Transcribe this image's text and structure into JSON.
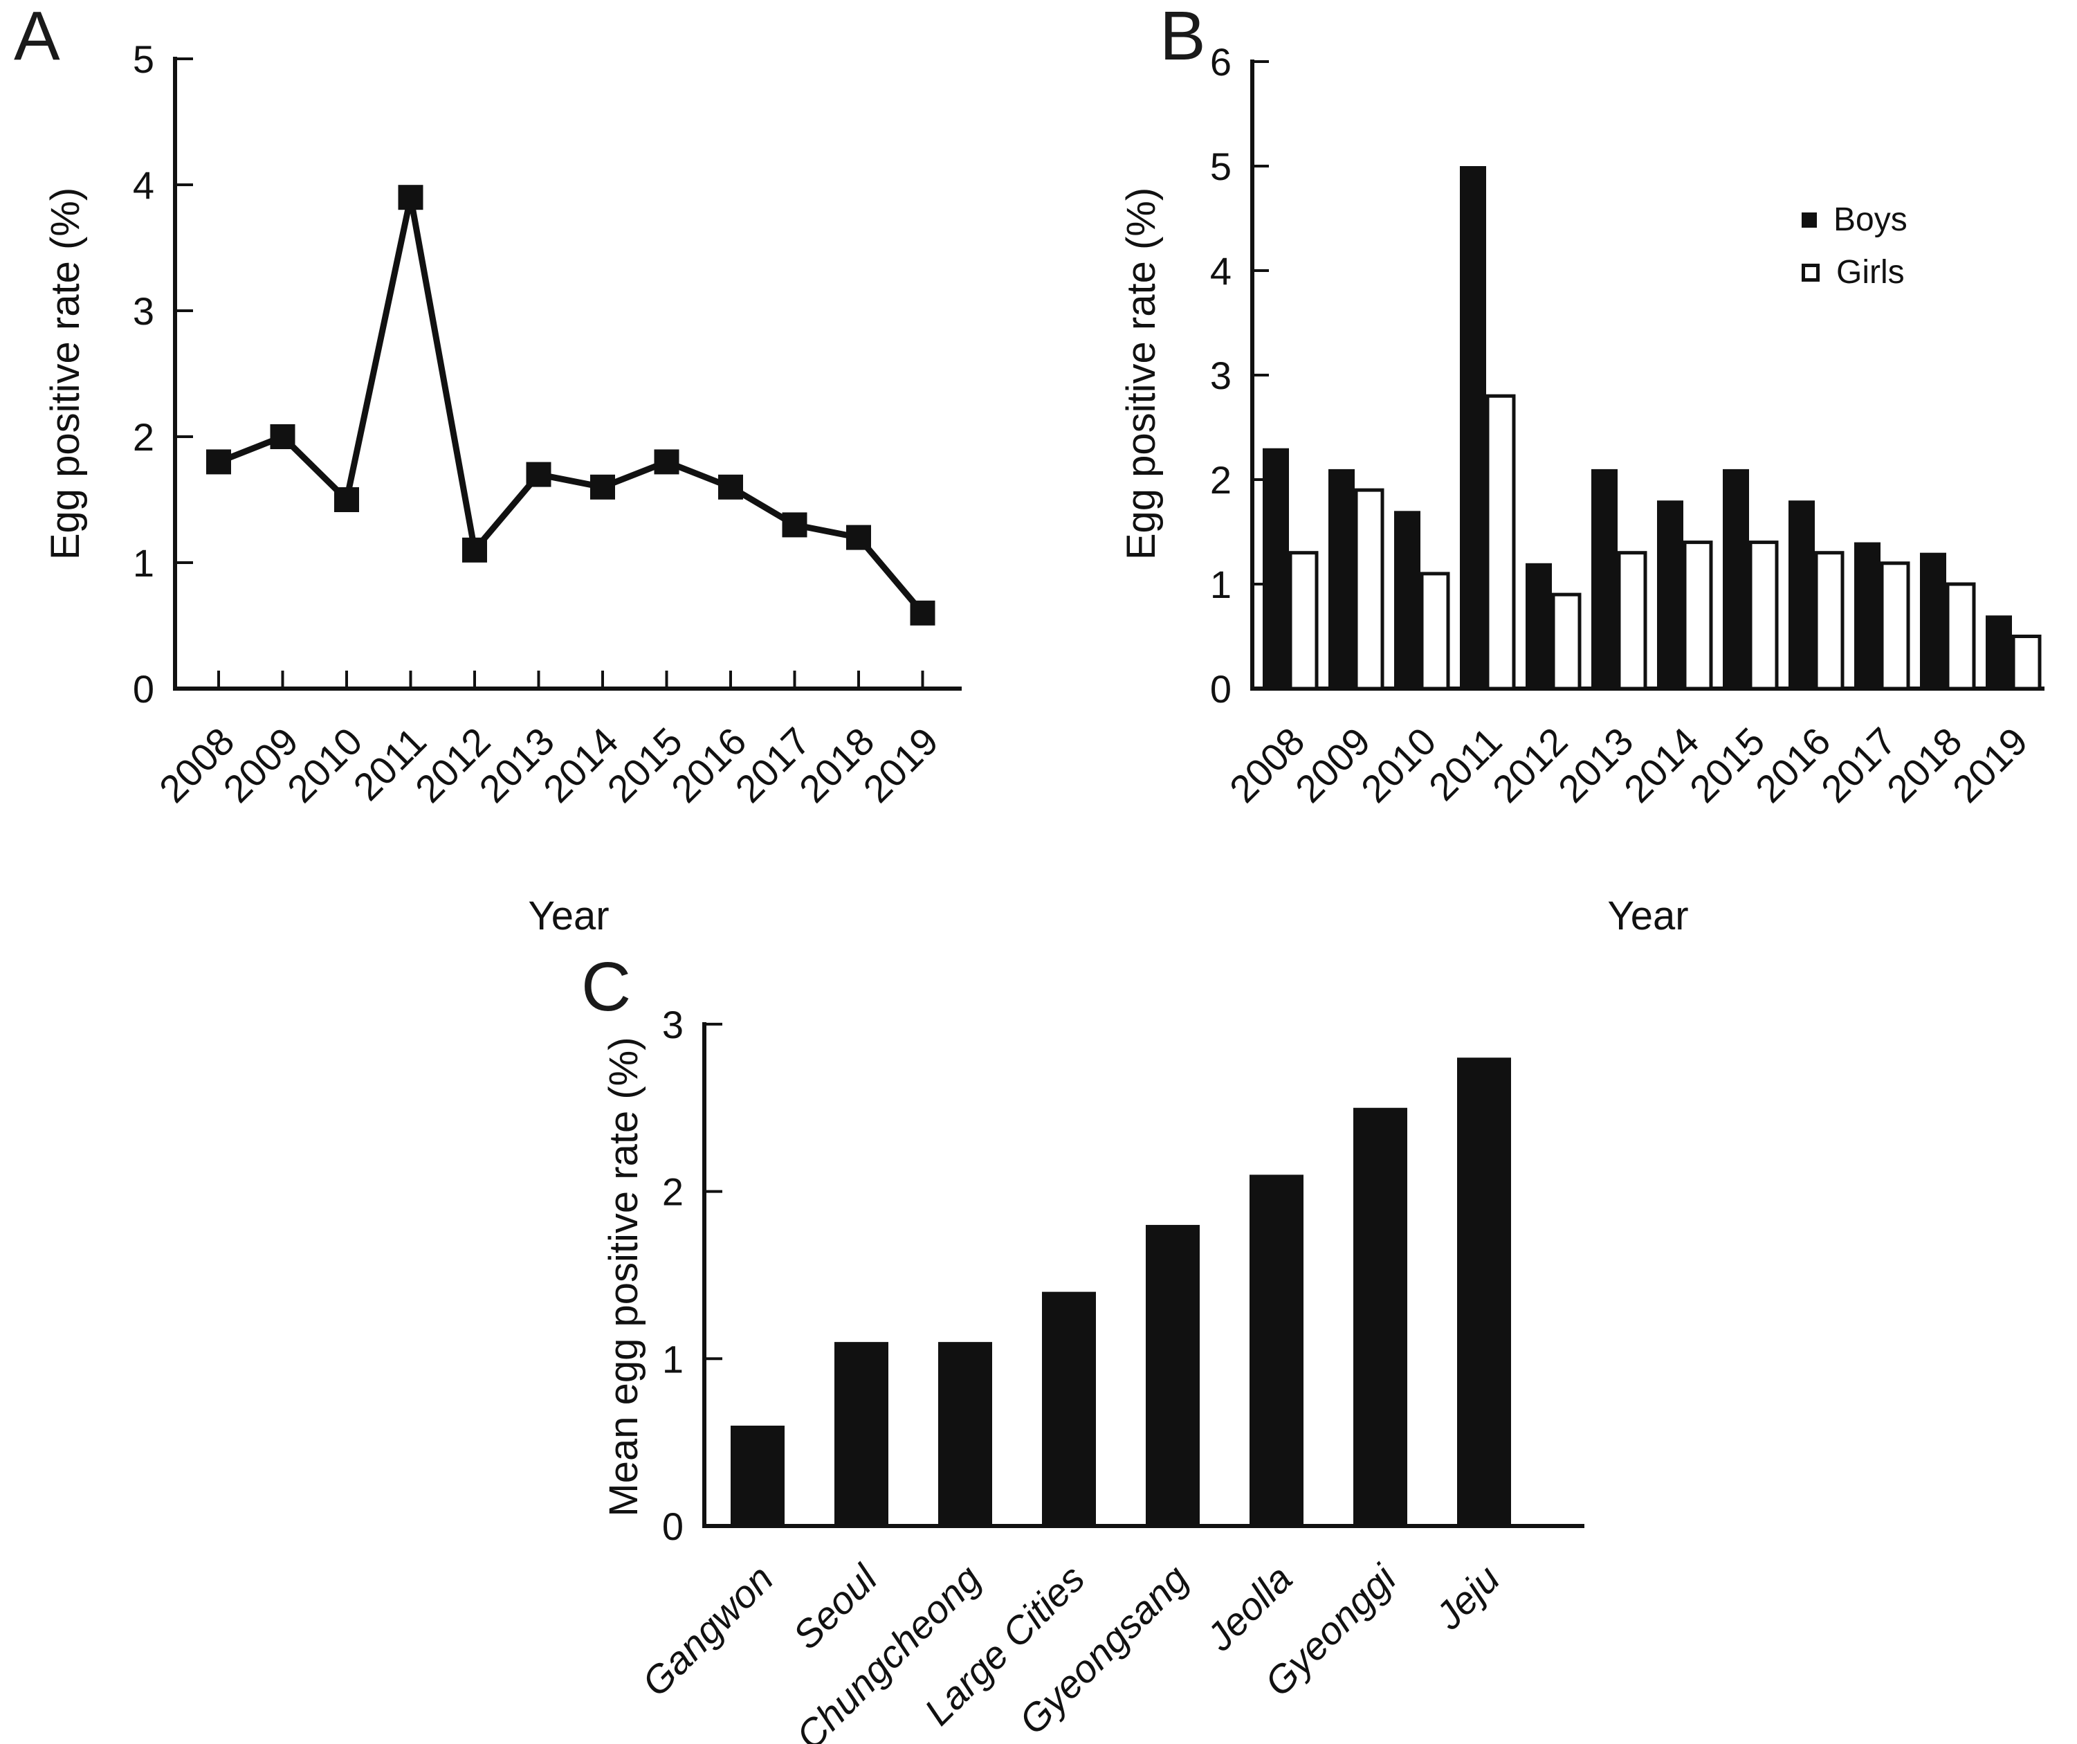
{
  "figure": {
    "background": "#ffffff",
    "ink": "#111111",
    "panel_a": {
      "letter": "A"
    },
    "panel_b": {
      "letter": "B"
    },
    "panel_c": {
      "letter": "C"
    }
  },
  "chart_data": [
    {
      "panel": "A",
      "type": "line",
      "marker": "square",
      "title": "",
      "xlabel": "Year",
      "ylabel": "Egg positive rate (%)",
      "categories": [
        "2008",
        "2009",
        "2010",
        "2011",
        "2012",
        "2013",
        "2014",
        "2015",
        "2016",
        "2017",
        "2018",
        "2019"
      ],
      "values": [
        1.8,
        2.0,
        1.5,
        3.9,
        1.1,
        1.7,
        1.6,
        1.8,
        1.6,
        1.3,
        1.2,
        0.6
      ],
      "ylim": [
        0,
        5
      ],
      "yticks": [
        0,
        1,
        2,
        3,
        4,
        5
      ],
      "grid": false,
      "legend_position": "none"
    },
    {
      "panel": "B",
      "type": "bar",
      "title": "",
      "xlabel": "Year",
      "ylabel": "Egg positive rate (%)",
      "categories": [
        "2008",
        "2009",
        "2010",
        "2011",
        "2012",
        "2013",
        "2014",
        "2015",
        "2016",
        "2017",
        "2018",
        "2019"
      ],
      "series": [
        {
          "name": "Boys",
          "fill": "#111111",
          "values": [
            2.3,
            2.1,
            1.7,
            5.0,
            1.2,
            2.1,
            1.8,
            2.1,
            1.8,
            1.4,
            1.3,
            0.7
          ]
        },
        {
          "name": "Girls",
          "fill": "#ffffff",
          "values": [
            1.3,
            1.9,
            1.1,
            2.8,
            0.9,
            1.3,
            1.4,
            1.4,
            1.3,
            1.2,
            1.0,
            0.5
          ]
        }
      ],
      "ylim": [
        0,
        6
      ],
      "yticks": [
        0,
        1,
        2,
        3,
        4,
        5,
        6
      ],
      "grid": false,
      "legend_position": "upper right"
    },
    {
      "panel": "C",
      "type": "bar",
      "title": "",
      "xlabel": "",
      "ylabel": "Mean egg positive rate (%)",
      "categories": [
        "Gangwon",
        "Seoul",
        "Chungcheong",
        "Large Cities",
        "Gyeongsang",
        "Jeolla",
        "Gyeonggi",
        "Jeju"
      ],
      "values": [
        0.6,
        1.1,
        1.1,
        1.4,
        1.8,
        2.1,
        2.5,
        2.8
      ],
      "ylim": [
        0,
        3
      ],
      "yticks": [
        0,
        1,
        2,
        3
      ],
      "grid": false,
      "legend_position": "none"
    }
  ]
}
